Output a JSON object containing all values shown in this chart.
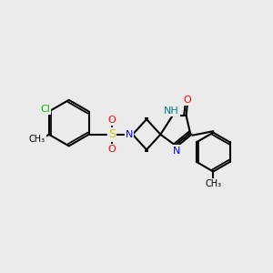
{
  "background_color": "#ebebeb",
  "bond_color": "#000000",
  "bond_width": 1.5,
  "figsize": [
    3.0,
    3.0
  ],
  "dpi": 100,
  "atom_colors": {
    "N": "#0000ff",
    "O": "#ff0000",
    "S": "#cccc00",
    "Cl": "#00bb00",
    "NH": "#008080",
    "C": "#000000"
  },
  "font_size": 8,
  "font_size_small": 7
}
